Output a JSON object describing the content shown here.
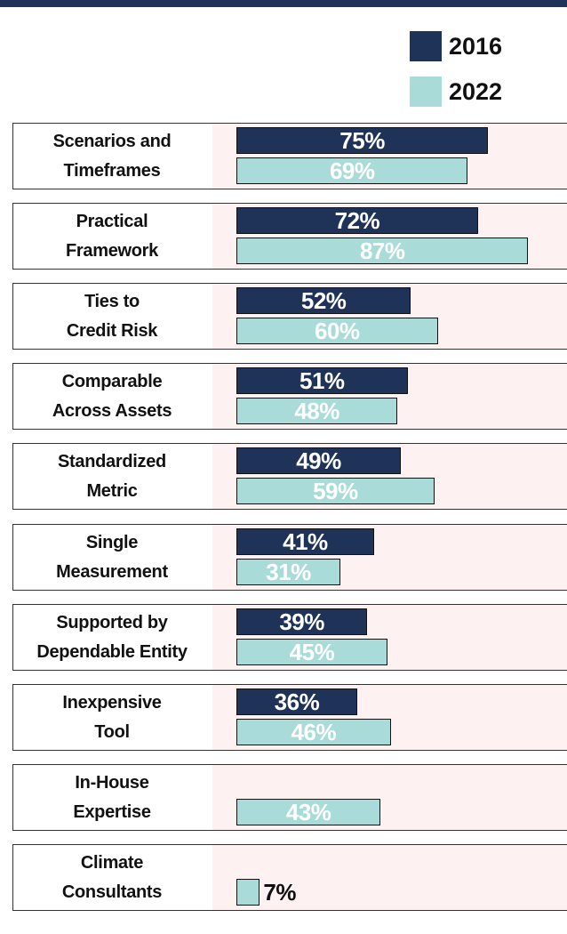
{
  "chart_data": {
    "type": "grouped-horizontal-bar",
    "categories": [
      "Scenarios and\nTimeframes",
      "Practical\nFramework",
      "Ties to\nCredit Risk",
      "Comparable\nAcross Assets",
      "Standardized\nMetric",
      "Single\nMeasurement",
      "Supported by\nDependable Entity",
      "Inexpensive\nTool",
      "In-House\nExpertise",
      "Climate\nConsultants"
    ],
    "series": [
      {
        "name": "2016",
        "color": "#1f3358",
        "values": [
          75,
          72,
          52,
          51,
          49,
          41,
          39,
          36,
          null,
          null
        ],
        "value_labels": [
          "75%",
          "72%",
          "52%",
          "51%",
          "49%",
          "41%",
          "39%",
          "36%",
          null,
          null
        ]
      },
      {
        "name": "2022",
        "color": "#a9dcd9",
        "values": [
          69,
          87,
          60,
          48,
          59,
          31,
          45,
          46,
          43,
          7
        ],
        "value_labels": [
          "69%",
          "87%",
          "60%",
          "48%",
          "59%",
          "31%",
          "45%",
          "46%",
          "43%",
          "7%"
        ]
      }
    ]
  }
}
